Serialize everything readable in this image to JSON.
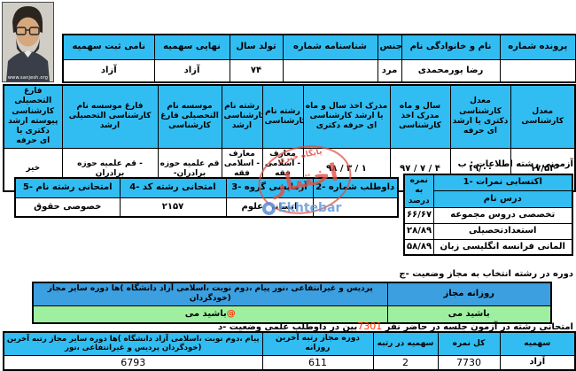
{
  "colors": {
    "header_blue": "#31bdf2",
    "header_blue_dark": "#3b9fe0",
    "green": "#9ef0a0",
    "red": "#ff3300",
    "stamp_red": "#de5046",
    "logo_blue": "#6ea0d7"
  },
  "photo": {
    "caption": "www.sanjesh.org"
  },
  "stamp": {
    "top_text": "پایگاه خبری",
    "main_text": "اختبار",
    "latin_text": "Ekhtebar"
  },
  "profile": {
    "headers": [
      "سهمیه ثبت نامی",
      "سهمیه نهایی",
      "سال تولد",
      "شماره شناسنامه",
      "جنس",
      "نام خانوادگی و نام",
      "شماره پرونده"
    ],
    "values": [
      "آزاد",
      "آزاد",
      "۷۴",
      "",
      "مرد",
      "پورمحمدی رضا",
      ""
    ]
  },
  "education": {
    "headers": [
      "فارغ التحصیلی کارشناسی ارشد پیوسته یا دکتری حرفه ای",
      "نام موسسه فارغ التحصیلی کارشناسی ارشد",
      "نام موسسه فارغ التحصیلی کارشناسی",
      "نام رشته کارشناسی ارشد",
      "نام رشته کارشناسی",
      "ماه و سال اخذ مدرک کارشناسی ارشد یا دکتری حرفه ای",
      "ماه و سال اخذ مدرک کارشناسی",
      "معدل کارشناسی ارشد یا دکتری حرفه ای",
      "معدل کارشناسی"
    ],
    "values": [
      "خیر",
      "حوزه علمیه قم -برادران",
      "حوزه علمیه قم -برادران",
      "معارف اسلامی -فقه واصول",
      "معارف اسلامی -فقه واصول",
      "۹۸ / ۳ / ۱",
      "۹۷ / ۷ / ۴",
      "۱۹/۰۰",
      "۱۷/۵۳"
    ]
  },
  "section_b": {
    "label": "ب : اطلاعات رشته آزمونی",
    "exam": {
      "headers": [
        "5- نام رشته امتحانی",
        "4- کد رشته امتحانی",
        "3- گروه آزمایشی",
        "2- شماره داوطلب"
      ],
      "values": [
        "حقوق خصوصی",
        "۲۱۵۷",
        "علوم انسانی",
        ""
      ]
    },
    "scores": {
      "title": "1- نمرات اکتسابی",
      "pct_header": "نمره به درصد",
      "course_header": "نام درس",
      "rows": [
        {
          "course": "مجموعه دروس تخصصی",
          "pct": "۶۶/۶۷"
        },
        {
          "course": "استعدادتحصیلی",
          "pct": "۲۸/۸۹"
        },
        {
          "course": "زبان انگلیسی فرانسه المانی",
          "pct": "۵۸/۸۹"
        }
      ]
    }
  },
  "section_c": {
    "label": "ج- وضعیت مجاز به انتخاب رشته در دوره",
    "other_header": "مجاز سایر دوره ها( دانشگاه آزاد اسلامی، نوبت دوم، پیام نور، غیرانتفاعی و پردیس خودگردان)",
    "daytime_header": "مجاز روزانه",
    "other_value": "می باشید",
    "other_value_suffix": "@",
    "daytime_value": "می باشید"
  },
  "section_d": {
    "label_pre": "د- وضعیت علمی داوطلب در بین",
    "label_num": "7301",
    "label_post": "نفر حاضر در جلسه آزمون در رشته امتحانی",
    "headers": [
      "آخرین رتبه مجاز سایر دوره ها( دانشگاه آزاد اسلامی، نوبت دوم، پیام نور، غیرانتفاعی و پردیس خودگردان)",
      "آخرین رتبه مجاز دوره روزانه",
      "رتبه در سهمیه",
      "نمره کل",
      "سهمیه"
    ],
    "values": [
      "6793",
      "611",
      "2",
      "7730",
      "آزاد"
    ]
  }
}
